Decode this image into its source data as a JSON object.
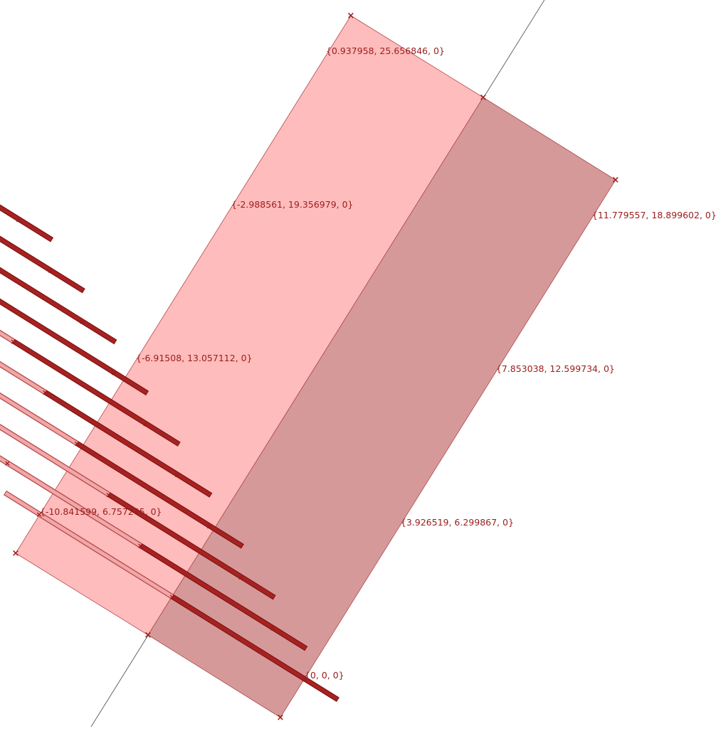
{
  "scene": {
    "background": "#ffffff",
    "colors": {
      "light_fill": "#ffbcbc",
      "dark_fill": "#d59999",
      "edge": "#b0474a",
      "rail_light": "#f2a6a6",
      "rail_dark": "#a82222",
      "marker": "#a01818",
      "label": "#9b1c1c",
      "axis": "#555555"
    },
    "labels": [
      "{0.937958, 25.656846, 0}",
      "{11.779557, 18.899602, 0}",
      "{-2.988561, 19.356979, 0}",
      "{7.853038, 12.599734, 0}",
      "{-6.91508, 13.057112, 0}",
      "{3.926519, 6.299867, 0}",
      "{-10.841599, 6.757245, 0}",
      "{0, 0, 0}"
    ]
  }
}
